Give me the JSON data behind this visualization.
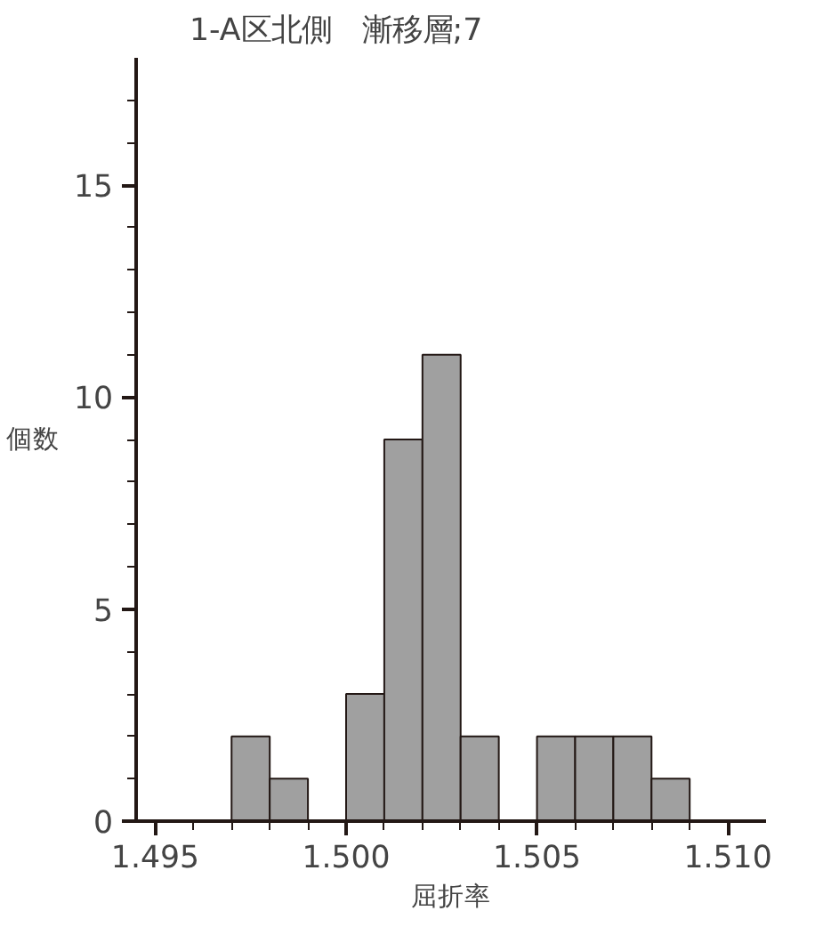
{
  "chart_data": {
    "type": "histogram",
    "title": "1-A区北側　漸移層;7",
    "xlabel": "屈折率",
    "ylabel": "個数",
    "bins": [
      1.497,
      1.498,
      1.499,
      1.5,
      1.501,
      1.502,
      1.503,
      1.504,
      1.505,
      1.506,
      1.507,
      1.508,
      1.509
    ],
    "values": [
      2,
      1,
      0,
      3,
      9,
      11,
      2,
      0,
      2,
      2,
      2,
      1
    ],
    "color": "#a0a0a0",
    "xlim": [
      1.4945,
      1.511
    ],
    "xticks": [
      {
        "value": 1.495,
        "label": "1.495"
      },
      {
        "value": 1.496,
        "label": null
      },
      {
        "value": 1.497,
        "label": null
      },
      {
        "value": 1.498,
        "label": null
      },
      {
        "value": 1.499,
        "label": null
      },
      {
        "value": 1.5,
        "label": "1.500"
      },
      {
        "value": 1.501,
        "label": null
      },
      {
        "value": 1.502,
        "label": null
      },
      {
        "value": 1.503,
        "label": null
      },
      {
        "value": 1.504,
        "label": null
      },
      {
        "value": 1.505,
        "label": "1.505"
      },
      {
        "value": 1.506,
        "label": null
      },
      {
        "value": 1.507,
        "label": null
      },
      {
        "value": 1.508,
        "label": null
      },
      {
        "value": 1.509,
        "label": null
      },
      {
        "value": 1.51,
        "label": "1.510"
      }
    ],
    "ylim": [
      0,
      18
    ],
    "yticks": [
      0,
      {
        "value": 1,
        "label": null
      },
      {
        "value": 2,
        "label": null
      },
      {
        "value": 3,
        "label": null
      },
      {
        "value": 4,
        "label": null
      },
      5,
      {
        "value": 6,
        "label": null
      },
      {
        "value": 7,
        "label": null
      },
      {
        "value": 8,
        "label": null
      },
      {
        "value": 9,
        "label": null
      },
      10,
      {
        "value": 11,
        "label": null
      },
      {
        "value": 12,
        "label": null
      },
      {
        "value": 13,
        "label": null
      },
      {
        "value": 14,
        "label": null
      },
      15,
      {
        "value": 16,
        "label": null
      },
      {
        "value": 17,
        "label": null
      }
    ],
    "grid": false
  }
}
